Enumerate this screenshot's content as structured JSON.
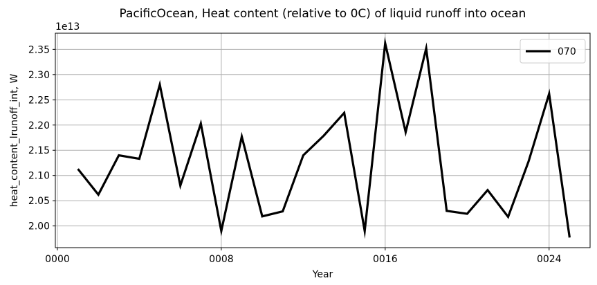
{
  "chart_data": {
    "type": "line",
    "title": "PacificOcean, Heat content (relative to 0C) of liquid runoff into ocean",
    "xlabel": "Year",
    "ylabel": "heat_content_lrunoff_int, W",
    "y_offset_label": "1e13",
    "y_scale": 10000000000000.0,
    "xlim": [
      -0.1,
      26.0
    ],
    "ylim": [
      1.957,
      2.382
    ],
    "grid": true,
    "legend_position": "top-right",
    "x_ticks": [
      {
        "value": 0,
        "label": "0000"
      },
      {
        "value": 8,
        "label": "0008"
      },
      {
        "value": 16,
        "label": "0016"
      },
      {
        "value": 24,
        "label": "0024"
      }
    ],
    "y_ticks": [
      {
        "value": 2.0,
        "label": "2.00"
      },
      {
        "value": 2.05,
        "label": "2.05"
      },
      {
        "value": 2.1,
        "label": "2.10"
      },
      {
        "value": 2.15,
        "label": "2.15"
      },
      {
        "value": 2.2,
        "label": "2.20"
      },
      {
        "value": 2.25,
        "label": "2.25"
      },
      {
        "value": 2.3,
        "label": "2.30"
      },
      {
        "value": 2.35,
        "label": "2.35"
      }
    ],
    "series": [
      {
        "name": "070",
        "color": "#000000",
        "x": [
          1,
          2,
          3,
          4,
          5,
          6,
          7,
          8,
          9,
          10,
          11,
          12,
          13,
          14,
          15,
          16,
          17,
          18,
          19,
          20,
          21,
          22,
          23,
          24,
          25
        ],
        "values": [
          2.113,
          2.062,
          2.14,
          2.133,
          2.28,
          2.08,
          2.203,
          1.99,
          2.177,
          2.019,
          2.029,
          2.14,
          2.179,
          2.224,
          1.99,
          2.362,
          2.186,
          2.352,
          2.03,
          2.024,
          2.071,
          2.018,
          2.128,
          2.262,
          1.977
        ]
      }
    ]
  }
}
